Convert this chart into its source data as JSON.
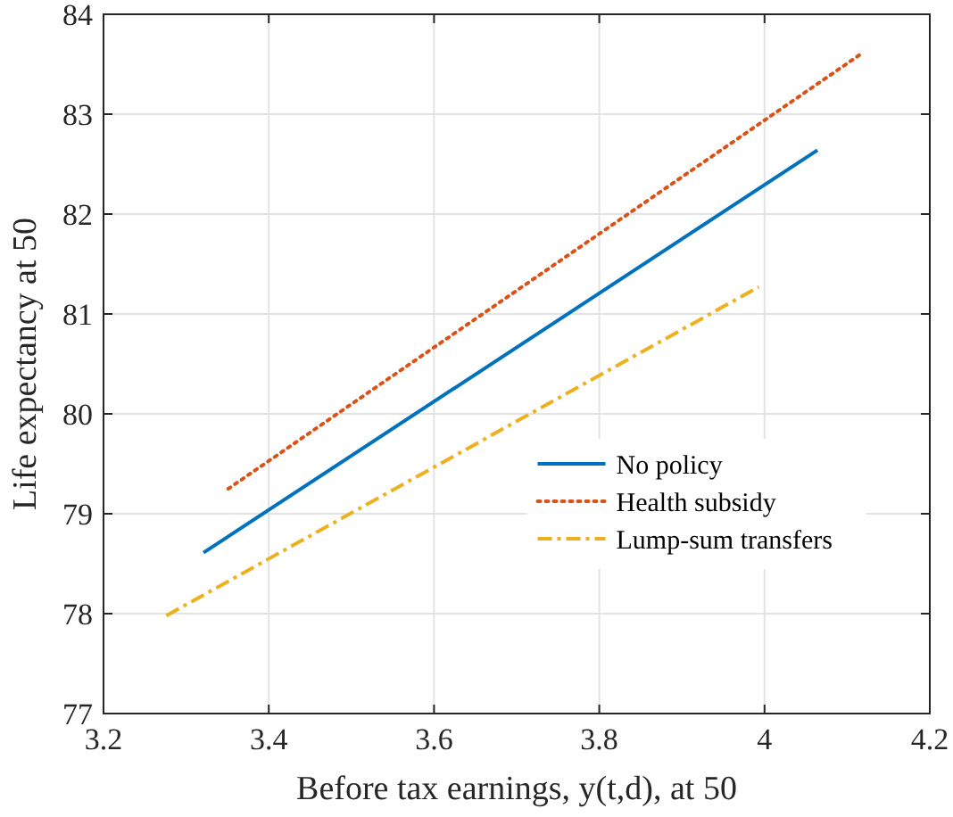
{
  "chart_data": {
    "type": "line",
    "xlabel": "Before tax earnings, y(t,d), at 50",
    "ylabel": "Life expectancy at 50",
    "xlim": [
      3.2,
      4.2
    ],
    "xticks": [
      3.2,
      3.4,
      3.6,
      3.8,
      4,
      4.2
    ],
    "ylim": [
      77,
      84
    ],
    "yticks": [
      77,
      78,
      79,
      80,
      81,
      82,
      83,
      84
    ],
    "grid": true,
    "legend": "right",
    "series": [
      {
        "name": "No policy",
        "color": "#0072bd",
        "line_style": "solid",
        "x": [
          3.321,
          4.064
        ],
        "values": [
          78.61,
          82.64
        ]
      },
      {
        "name": "Health subsidy",
        "color": "#d95319",
        "line_style": "dotted",
        "x": [
          3.351,
          4.118
        ],
        "values": [
          79.25,
          83.61
        ]
      },
      {
        "name": "Lump-sum transfers",
        "color": "#edb120",
        "line_style": "dashdot",
        "x": [
          3.276,
          3.993
        ],
        "values": [
          77.98,
          81.27
        ]
      }
    ]
  }
}
